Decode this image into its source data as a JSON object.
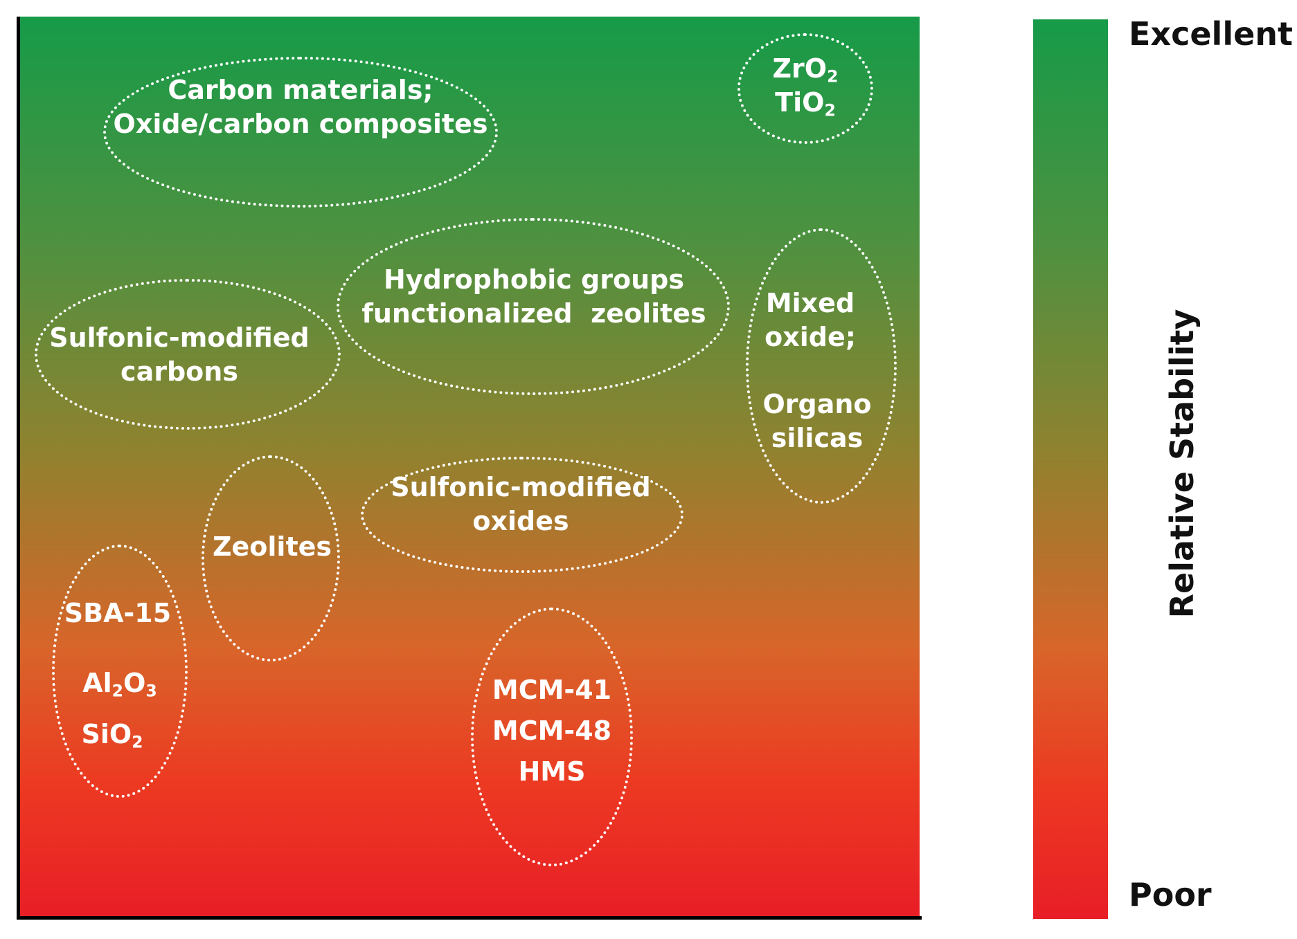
{
  "groups": [
    {
      "id": "carbon",
      "lines": [
        "Carbon materials;",
        "Oxide/carbon composites"
      ]
    },
    {
      "id": "zro2-tio2",
      "lines": [
        [
          "Zr",
          "O",
          "2"
        ],
        [
          "Ti",
          "O",
          "2"
        ]
      ]
    },
    {
      "id": "hydrophobic",
      "lines": [
        "Hydrophobic groups",
        "functionalized  zeolites"
      ]
    },
    {
      "id": "sulfonic-carbons",
      "lines": [
        "Sulfonic-modified",
        "carbons"
      ]
    },
    {
      "id": "mixed-oxide",
      "lines": [
        "Mixed",
        "oxide;"
      ]
    },
    {
      "id": "organo",
      "lines": [
        "Organo",
        "silicas"
      ]
    },
    {
      "id": "sulfonic-oxides",
      "lines": [
        "Sulfonic-modified",
        "oxides"
      ]
    },
    {
      "id": "zeolites",
      "lines": [
        "Zeolites"
      ]
    },
    {
      "id": "sba15",
      "lines": [
        "SBA-15"
      ]
    },
    {
      "id": "al2o3",
      "lines": [
        [
          "Al",
          "2",
          "O",
          "3"
        ]
      ]
    },
    {
      "id": "sio2",
      "lines": [
        [
          "Si",
          "O",
          "2"
        ]
      ]
    },
    {
      "id": "mcm",
      "lines": [
        "MCM-41",
        "MCM-48",
        "HMS"
      ]
    }
  ],
  "scale": {
    "title": "Relative Stability",
    "top_label": "Excellent",
    "bottom_label": "Poor",
    "top_color": "#169b48",
    "bottom_color": "#e81e26"
  }
}
